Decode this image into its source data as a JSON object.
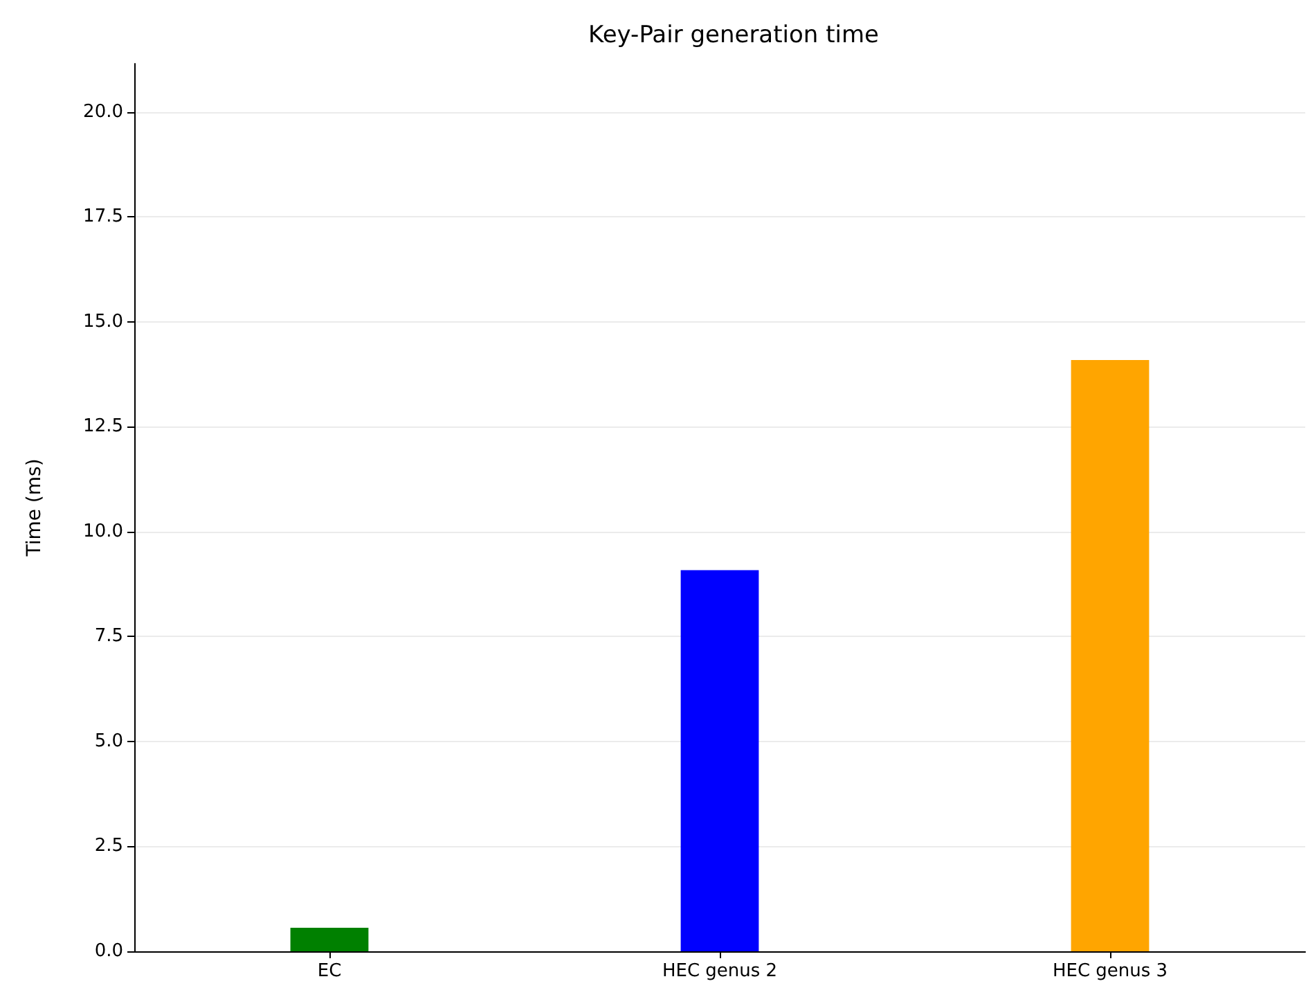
{
  "chart_data": {
    "type": "bar",
    "title": "Key-Pair generation time",
    "ylabel": "Time (ms)",
    "categories": [
      "EC",
      "HEC genus 2",
      "HEC genus 3"
    ],
    "values": [
      0.56,
      9.08,
      14.09
    ],
    "colors": [
      "#008000",
      "#0000ff",
      "#ffa500"
    ],
    "ylim": [
      0,
      21.15
    ],
    "yticks": [
      {
        "value": 0,
        "label": "0.0"
      },
      {
        "value": 2.5,
        "label": "2.5"
      },
      {
        "value": 5,
        "label": "5.0"
      },
      {
        "value": 7.5,
        "label": "7.5"
      },
      {
        "value": 10,
        "label": "10.0"
      },
      {
        "value": 12.5,
        "label": "12.5"
      },
      {
        "value": 15,
        "label": "15.0"
      },
      {
        "value": 17.5,
        "label": "17.5"
      },
      {
        "value": 20,
        "label": "20.0"
      }
    ],
    "grid": "y"
  }
}
